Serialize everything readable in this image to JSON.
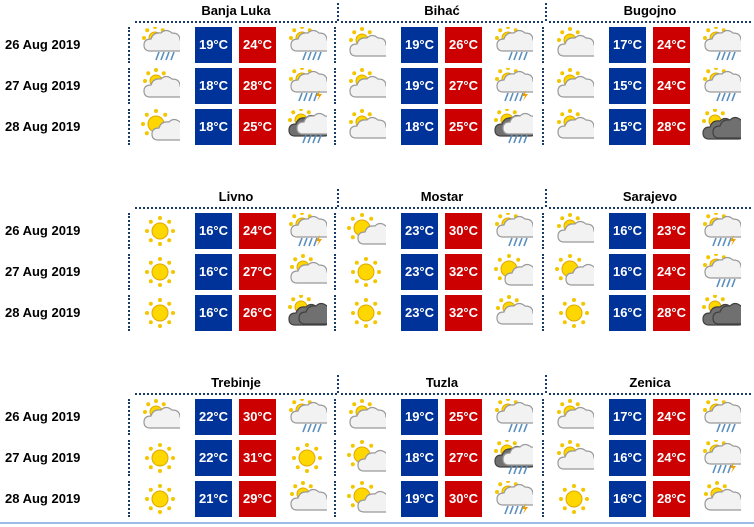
{
  "colors": {
    "min": "#003399",
    "max": "#cc0000"
  },
  "blocks": [
    {
      "dates": [
        "26 Aug 2019",
        "27 Aug 2019",
        "28 Aug 2019"
      ],
      "cities": [
        {
          "name": "Banja Luka",
          "days": [
            {
              "am": "rain-sun",
              "min": "19°C",
              "max": "24°C",
              "pm": "rain-sun"
            },
            {
              "am": "partly-cloudy",
              "min": "18°C",
              "max": "28°C",
              "pm": "thunder-rain"
            },
            {
              "am": "sun-cloud",
              "min": "18°C",
              "max": "25°C",
              "pm": "dark-rain"
            }
          ]
        },
        {
          "name": "Bihać",
          "days": [
            {
              "am": "partly-cloudy",
              "min": "19°C",
              "max": "26°C",
              "pm": "rain-sun"
            },
            {
              "am": "partly-cloudy",
              "min": "19°C",
              "max": "27°C",
              "pm": "thunder-rain"
            },
            {
              "am": "partly-cloudy",
              "min": "18°C",
              "max": "25°C",
              "pm": "dark-rain"
            }
          ]
        },
        {
          "name": "Bugojno",
          "days": [
            {
              "am": "partly-cloudy",
              "min": "17°C",
              "max": "24°C",
              "pm": "rain-sun"
            },
            {
              "am": "partly-cloudy",
              "min": "15°C",
              "max": "24°C",
              "pm": "rain-sun"
            },
            {
              "am": "partly-cloudy",
              "min": "15°C",
              "max": "28°C",
              "pm": "dark-cloud"
            }
          ]
        }
      ]
    },
    {
      "dates": [
        "26 Aug 2019",
        "27 Aug 2019",
        "28 Aug 2019"
      ],
      "cities": [
        {
          "name": "Livno",
          "days": [
            {
              "am": "sun",
              "min": "16°C",
              "max": "24°C",
              "pm": "thunder-rain"
            },
            {
              "am": "sun",
              "min": "16°C",
              "max": "27°C",
              "pm": "partly-cloudy"
            },
            {
              "am": "sun",
              "min": "16°C",
              "max": "26°C",
              "pm": "dark-cloud"
            }
          ]
        },
        {
          "name": "Mostar",
          "days": [
            {
              "am": "sun-cloud",
              "min": "23°C",
              "max": "30°C",
              "pm": "rain-sun"
            },
            {
              "am": "sun",
              "min": "23°C",
              "max": "32°C",
              "pm": "sun-cloud"
            },
            {
              "am": "sun",
              "min": "23°C",
              "max": "32°C",
              "pm": "partly-cloudy"
            }
          ]
        },
        {
          "name": "Sarajevo",
          "days": [
            {
              "am": "partly-cloudy",
              "min": "16°C",
              "max": "23°C",
              "pm": "thunder-rain"
            },
            {
              "am": "sun-cloud",
              "min": "16°C",
              "max": "24°C",
              "pm": "rain-sun"
            },
            {
              "am": "sun",
              "min": "16°C",
              "max": "28°C",
              "pm": "dark-cloud"
            }
          ]
        }
      ]
    },
    {
      "dates": [
        "26 Aug 2019",
        "27 Aug 2019",
        "28 Aug 2019"
      ],
      "cities": [
        {
          "name": "Trebinje",
          "days": [
            {
              "am": "partly-cloudy",
              "min": "22°C",
              "max": "30°C",
              "pm": "rain-sun"
            },
            {
              "am": "sun",
              "min": "22°C",
              "max": "31°C",
              "pm": "sun"
            },
            {
              "am": "sun",
              "min": "21°C",
              "max": "29°C",
              "pm": "partly-cloudy"
            }
          ]
        },
        {
          "name": "Tuzla",
          "days": [
            {
              "am": "partly-cloudy",
              "min": "19°C",
              "max": "25°C",
              "pm": "rain-sun"
            },
            {
              "am": "sun-cloud",
              "min": "18°C",
              "max": "27°C",
              "pm": "dark-rain"
            },
            {
              "am": "sun-cloud",
              "min": "19°C",
              "max": "30°C",
              "pm": "thunder-rain"
            }
          ]
        },
        {
          "name": "Zenica",
          "days": [
            {
              "am": "partly-cloudy",
              "min": "17°C",
              "max": "24°C",
              "pm": "rain-sun"
            },
            {
              "am": "partly-cloudy",
              "min": "16°C",
              "max": "24°C",
              "pm": "thunder-rain"
            },
            {
              "am": "sun",
              "min": "16°C",
              "max": "28°C",
              "pm": "partly-cloudy"
            }
          ]
        }
      ]
    }
  ]
}
